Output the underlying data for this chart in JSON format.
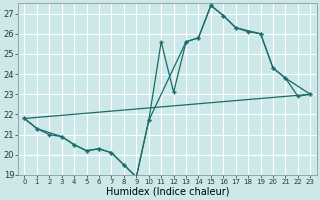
{
  "xlabel": "Humidex (Indice chaleur)",
  "bg_color": "#cce8e8",
  "grid_color": "#b0d4d4",
  "line_color": "#1a6b6b",
  "xlim": [
    -0.5,
    23.5
  ],
  "ylim": [
    19,
    27.5
  ],
  "yticks": [
    19,
    20,
    21,
    22,
    23,
    24,
    25,
    26,
    27
  ],
  "xticks": [
    0,
    1,
    2,
    3,
    4,
    5,
    6,
    7,
    8,
    9,
    10,
    11,
    12,
    13,
    14,
    15,
    16,
    17,
    18,
    19,
    20,
    21,
    22,
    23
  ],
  "series1_x": [
    0,
    1,
    2,
    3,
    4,
    5,
    6,
    7,
    8,
    9,
    10,
    11,
    12,
    13,
    14,
    15,
    16,
    17,
    18,
    19,
    20,
    21,
    22,
    23
  ],
  "series1_y": [
    21.8,
    21.3,
    21.0,
    20.9,
    20.5,
    20.2,
    20.3,
    20.1,
    19.5,
    18.9,
    21.7,
    25.6,
    23.1,
    25.6,
    25.8,
    27.4,
    26.9,
    26.3,
    26.1,
    26.0,
    24.3,
    23.8,
    22.9,
    23.0
  ],
  "series2_x": [
    0,
    1,
    3,
    4,
    5,
    6,
    7,
    8,
    9,
    10,
    13,
    14,
    15,
    16,
    17,
    19,
    20,
    21,
    23
  ],
  "series2_y": [
    21.8,
    21.3,
    20.9,
    20.5,
    20.2,
    20.3,
    20.1,
    19.5,
    18.9,
    21.7,
    25.6,
    25.8,
    27.4,
    26.9,
    26.3,
    26.0,
    24.3,
    23.8,
    23.0
  ],
  "series3_x": [
    0,
    23
  ],
  "series3_y": [
    21.8,
    23.0
  ]
}
